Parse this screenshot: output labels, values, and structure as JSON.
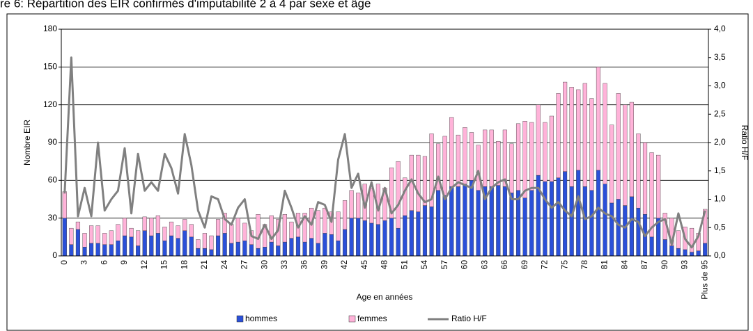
{
  "chart_data": {
    "type": "bar",
    "stacked": true,
    "title": "re 6: Répartition des EIR confirmés d'imputabilité 2 à 4 par sexe et âge",
    "x_label": "Age en années",
    "y_label": "Nombre EIR",
    "y2_label": "Ratio H/F",
    "categories": [
      "0",
      null,
      null,
      "3",
      null,
      null,
      "6",
      null,
      null,
      "9",
      null,
      null,
      "12",
      null,
      null,
      "15",
      null,
      null,
      "18",
      null,
      null,
      "21",
      null,
      null,
      "24",
      null,
      null,
      "27",
      null,
      null,
      "30",
      null,
      null,
      "33",
      null,
      null,
      "36",
      null,
      null,
      "39",
      null,
      null,
      "42",
      null,
      null,
      "45",
      null,
      null,
      "48",
      null,
      null,
      "51",
      null,
      null,
      "54",
      null,
      null,
      "57",
      null,
      null,
      "60",
      null,
      null,
      "63",
      null,
      null,
      "66",
      null,
      null,
      "69",
      null,
      null,
      "72",
      null,
      null,
      "75",
      null,
      null,
      "78",
      null,
      null,
      "81",
      null,
      null,
      "84",
      null,
      null,
      "87",
      null,
      null,
      "90",
      null,
      null,
      "93",
      null,
      null,
      "Plus de 95"
    ],
    "series": [
      {
        "name": "hommes",
        "color": "#2b50d8",
        "values": [
          30,
          9,
          21,
          7,
          10,
          10,
          9,
          9,
          12,
          16,
          15,
          8,
          20,
          16,
          18,
          12,
          16,
          14,
          20,
          15,
          6,
          6,
          5,
          16,
          18,
          10,
          11,
          12,
          9,
          6,
          7,
          11,
          8,
          11,
          14,
          15,
          11,
          14,
          10,
          18,
          17,
          12,
          21,
          30,
          30,
          28,
          26,
          25,
          28,
          30,
          22,
          32,
          36,
          35,
          40,
          39,
          52,
          48,
          55,
          55,
          57,
          60,
          52,
          55,
          55,
          56,
          55,
          50,
          52,
          46,
          52,
          64,
          59,
          59,
          62,
          67,
          55,
          68,
          55,
          52,
          68,
          57,
          42,
          45,
          40,
          47,
          38,
          33,
          15,
          30,
          13,
          8,
          6,
          5,
          3,
          4,
          10
        ]
      },
      {
        "name": "femmes",
        "color": "#ffb3d9",
        "values": [
          21,
          13,
          6,
          11,
          14,
          14,
          9,
          11,
          13,
          14,
          7,
          12,
          11,
          14,
          14,
          11,
          11,
          10,
          9,
          10,
          7,
          12,
          11,
          13,
          16,
          15,
          19,
          14,
          11,
          27,
          18,
          21,
          21,
          22,
          13,
          19,
          23,
          24,
          26,
          20,
          18,
          23,
          23,
          22,
          20,
          29,
          28,
          32,
          26,
          40,
          53,
          30,
          44,
          45,
          39,
          58,
          37,
          47,
          55,
          41,
          45,
          38,
          36,
          45,
          45,
          35,
          45,
          39,
          53,
          61,
          54,
          56,
          47,
          52,
          67,
          71,
          79,
          64,
          82,
          73,
          82,
          80,
          62,
          84,
          80,
          75,
          59,
          57,
          67,
          50,
          21,
          22,
          14,
          18,
          19,
          14,
          27
        ]
      },
      {
        "name": "Ratio H/F",
        "type": "line",
        "axis": "y2",
        "color": "#808080",
        "values": [
          1.1,
          3.5,
          0.7,
          1.2,
          0.7,
          2.0,
          0.8,
          1.0,
          1.15,
          1.9,
          0.75,
          1.8,
          1.15,
          1.3,
          1.15,
          1.8,
          1.55,
          1.1,
          2.15,
          1.6,
          0.8,
          0.5,
          1.05,
          1.0,
          0.65,
          0.55,
          0.85,
          1.0,
          0.35,
          0.3,
          0.55,
          0.3,
          0.45,
          1.15,
          0.85,
          0.5,
          0.7,
          0.55,
          0.95,
          0.9,
          0.6,
          1.7,
          2.15,
          1.2,
          1.45,
          0.85,
          1.3,
          0.8,
          1.2,
          0.75,
          0.9,
          1.15,
          1.35,
          1.1,
          0.95,
          1.0,
          1.4,
          1.0,
          1.2,
          1.3,
          1.25,
          1.2,
          1.5,
          1.0,
          1.2,
          1.3,
          1.35,
          1.0,
          1.0,
          1.15,
          1.2,
          1.2,
          1.0,
          0.85,
          0.95,
          0.8,
          0.7,
          1.05,
          0.65,
          0.7,
          0.85,
          0.75,
          0.7,
          0.55,
          0.5,
          0.65,
          0.6,
          0.35,
          0.5,
          0.6,
          0.65,
          0.2,
          0.75,
          0.3,
          0.15,
          0.35,
          0.8
        ]
      }
    ],
    "ylim": [
      0,
      180
    ],
    "yticks": [
      0,
      30,
      60,
      90,
      120,
      150,
      180
    ],
    "y2lim": [
      0,
      4
    ],
    "y2ticks": [
      {
        "value": 0,
        "label": "0,0"
      },
      {
        "value": 0.5,
        "label": "0,5"
      },
      {
        "value": 1,
        "label": "1,0"
      },
      {
        "value": 1.5,
        "label": "1,5"
      },
      {
        "value": 2,
        "label": "2,0"
      },
      {
        "value": 2.5,
        "label": "2,5"
      },
      {
        "value": 3,
        "label": "3,0"
      },
      {
        "value": 3.5,
        "label": "3,5"
      },
      {
        "value": 4,
        "label": "4,0"
      }
    ],
    "grid": true,
    "legend": "bottom"
  }
}
